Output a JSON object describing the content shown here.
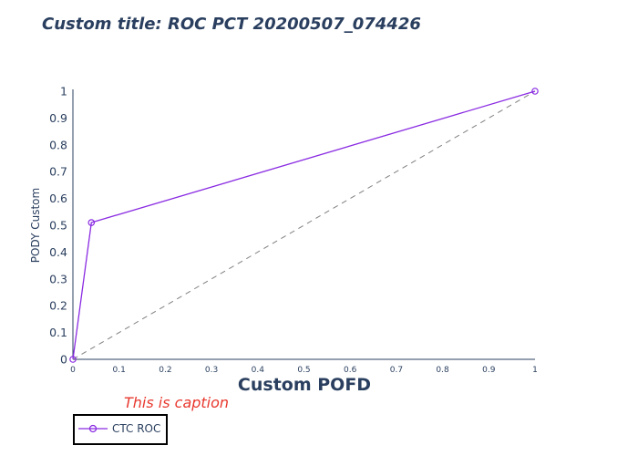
{
  "chart_data": {
    "type": "line",
    "title": "Custom title: ROC PCT 20200507_074426",
    "xlabel": "Custom POFD",
    "ylabel": "PODY Custom",
    "caption": "This is caption",
    "xlim": [
      0,
      1
    ],
    "ylim": [
      0,
      1
    ],
    "x_ticks": [
      "0",
      "0.1",
      "0.2",
      "0.3",
      "0.4",
      "0.5",
      "0.6",
      "0.7",
      "0.8",
      "0.9",
      "1"
    ],
    "y_ticks": [
      "0",
      "0.1",
      "0.2",
      "0.3",
      "0.4",
      "0.5",
      "0.6",
      "0.7",
      "0.8",
      "0.9",
      "1"
    ],
    "grid": false,
    "legend_position": "bottom-left",
    "series": [
      {
        "name": "CTC ROC",
        "x": [
          0,
          0.04,
          1
        ],
        "y": [
          0,
          0.51,
          1
        ],
        "color": "#8a2be2"
      }
    ],
    "reference_line": {
      "x": [
        0,
        1
      ],
      "y": [
        0,
        1
      ],
      "color": "#808080",
      "dash": "dashed"
    },
    "colors": {
      "text": "#2a3f5f",
      "caption": "#e8382e",
      "axis": "#2a3f5f"
    }
  }
}
